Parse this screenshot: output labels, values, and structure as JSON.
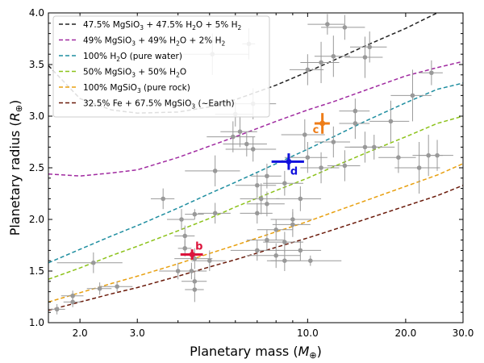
{
  "chart_data": {
    "type": "scatter",
    "title": "",
    "xlabel": "Planetary mass",
    "xlabel_unit": "M",
    "xlabel_unit_sub": "⊕",
    "ylabel": "Planetary radius",
    "ylabel_unit": "R",
    "ylabel_unit_sub": "⊕",
    "xscale": "log",
    "xlim": [
      1.6,
      30.0
    ],
    "ylim": [
      1.0,
      4.0
    ],
    "x_ticks": [
      {
        "v": 2.0,
        "label": "2.0"
      },
      {
        "v": 3.0,
        "label": "3.0"
      },
      {
        "v": 10.0,
        "label": "10.0"
      },
      {
        "v": 20.0,
        "label": "20.0"
      },
      {
        "v": 30.0,
        "label": "30.0"
      }
    ],
    "y_ticks": [
      {
        "v": 1.0,
        "label": "1.0"
      },
      {
        "v": 1.5,
        "label": "1.5"
      },
      {
        "v": 2.0,
        "label": "2.0"
      },
      {
        "v": 2.5,
        "label": "2.5"
      },
      {
        "v": 3.0,
        "label": "3.0"
      },
      {
        "v": 3.5,
        "label": "3.5"
      },
      {
        "v": 4.0,
        "label": "4.0"
      }
    ],
    "legend_position": "top-left",
    "models": [
      {
        "name": "47.5% MgSiO₃ + 47.5% H₂O + 5% H₂",
        "color": "#222222",
        "points": [
          [
            1.6,
            3.49
          ],
          [
            2.0,
            3.17
          ],
          [
            2.5,
            3.06
          ],
          [
            3.0,
            3.03
          ],
          [
            4.0,
            3.04
          ],
          [
            5.0,
            3.09
          ],
          [
            6.0,
            3.16
          ],
          [
            8.0,
            3.3
          ],
          [
            10.0,
            3.43
          ],
          [
            12.0,
            3.54
          ],
          [
            15.0,
            3.68
          ],
          [
            20.0,
            3.85
          ],
          [
            25.0,
            4.0
          ]
        ]
      },
      {
        "name": "49% MgSiO₃ + 49% H₂O + 2% H₂",
        "color": "#a02aa0",
        "points": [
          [
            1.6,
            2.44
          ],
          [
            2.0,
            2.42
          ],
          [
            2.5,
            2.45
          ],
          [
            3.0,
            2.48
          ],
          [
            4.0,
            2.6
          ],
          [
            5.0,
            2.71
          ],
          [
            6.0,
            2.8
          ],
          [
            8.0,
            2.95
          ],
          [
            10.0,
            3.06
          ],
          [
            12.0,
            3.14
          ],
          [
            15.0,
            3.25
          ],
          [
            20.0,
            3.39
          ],
          [
            25.0,
            3.47
          ],
          [
            30.0,
            3.53
          ]
        ]
      },
      {
        "name": "100% H₂O (pure water)",
        "color": "#1f8ea0",
        "points": [
          [
            1.6,
            1.58
          ],
          [
            2.0,
            1.71
          ],
          [
            2.5,
            1.84
          ],
          [
            3.0,
            1.94
          ],
          [
            4.0,
            2.11
          ],
          [
            5.0,
            2.25
          ],
          [
            6.0,
            2.36
          ],
          [
            8.0,
            2.54
          ],
          [
            10.0,
            2.68
          ],
          [
            12.0,
            2.8
          ],
          [
            15.0,
            2.95
          ],
          [
            20.0,
            3.13
          ],
          [
            25.0,
            3.26
          ],
          [
            30.0,
            3.32
          ]
        ]
      },
      {
        "name": "50% MgSiO₃ + 50% H₂O",
        "color": "#8cc21a",
        "points": [
          [
            1.6,
            1.42
          ],
          [
            2.0,
            1.53
          ],
          [
            2.5,
            1.65
          ],
          [
            3.0,
            1.74
          ],
          [
            4.0,
            1.89
          ],
          [
            5.0,
            2.01
          ],
          [
            6.0,
            2.12
          ],
          [
            8.0,
            2.28
          ],
          [
            10.0,
            2.4
          ],
          [
            12.0,
            2.51
          ],
          [
            15.0,
            2.64
          ],
          [
            20.0,
            2.8
          ],
          [
            25.0,
            2.93
          ],
          [
            30.0,
            3.0
          ]
        ]
      },
      {
        "name": "100% MgSiO₃ (pure rock)",
        "color": "#e8a010",
        "points": [
          [
            1.6,
            1.2
          ],
          [
            2.0,
            1.29
          ],
          [
            2.5,
            1.38
          ],
          [
            3.0,
            1.45
          ],
          [
            4.0,
            1.57
          ],
          [
            5.0,
            1.67
          ],
          [
            6.0,
            1.75
          ],
          [
            8.0,
            1.88
          ],
          [
            10.0,
            1.98
          ],
          [
            12.0,
            2.07
          ],
          [
            15.0,
            2.18
          ],
          [
            20.0,
            2.32
          ],
          [
            25.0,
            2.43
          ],
          [
            30.0,
            2.54
          ]
        ]
      },
      {
        "name": "32.5% Fe + 67.5% MgSiO₃ (~Earth)",
        "color": "#6a1a0a",
        "points": [
          [
            1.6,
            1.12
          ],
          [
            2.0,
            1.2
          ],
          [
            2.5,
            1.28
          ],
          [
            3.0,
            1.34
          ],
          [
            4.0,
            1.45
          ],
          [
            5.0,
            1.54
          ],
          [
            6.0,
            1.61
          ],
          [
            8.0,
            1.73
          ],
          [
            10.0,
            1.82
          ],
          [
            12.0,
            1.9
          ],
          [
            15.0,
            2.0
          ],
          [
            20.0,
            2.13
          ],
          [
            25.0,
            2.23
          ],
          [
            30.0,
            2.33
          ]
        ]
      }
    ],
    "background_planets": {
      "color": "#999999",
      "points": [
        [
          1.7,
          1.13,
          0.1,
          0.05
        ],
        [
          1.9,
          1.2,
          0.12,
          0.05
        ],
        [
          1.9,
          1.26,
          0.15,
          0.05
        ],
        [
          2.3,
          1.33,
          0.2,
          0.06
        ],
        [
          2.6,
          1.35,
          0.3,
          0.05
        ],
        [
          2.2,
          1.58,
          0.5,
          0.1
        ],
        [
          3.6,
          2.2,
          0.3,
          0.1
        ],
        [
          4.1,
          2.0,
          0.4,
          0.1
        ],
        [
          4.5,
          2.05,
          0.3,
          0.05
        ],
        [
          4.2,
          1.84,
          0.3,
          0.1
        ],
        [
          4.2,
          1.72,
          0.2,
          0.08
        ],
        [
          4.5,
          1.62,
          0.6,
          0.1
        ],
        [
          4.4,
          1.5,
          0.5,
          0.08
        ],
        [
          4.5,
          1.4,
          0.4,
          0.1
        ],
        [
          4.5,
          1.32,
          0.3,
          0.12
        ],
        [
          4.0,
          1.5,
          0.5,
          0.08
        ],
        [
          5.0,
          1.6,
          0.6,
          0.1
        ],
        [
          5.2,
          2.06,
          0.6,
          0.1
        ],
        [
          5.2,
          2.47,
          1.0,
          0.15
        ],
        [
          5.9,
          2.8,
          1.0,
          0.15
        ],
        [
          6.2,
          2.85,
          0.8,
          0.15
        ],
        [
          6.5,
          2.73,
          1.0,
          0.12
        ],
        [
          6.8,
          2.68,
          1.2,
          0.12
        ],
        [
          6.0,
          3.02,
          0.8,
          0.12
        ],
        [
          6.8,
          3.12,
          1.2,
          0.15
        ],
        [
          5.1,
          3.6,
          1.5,
          0.2
        ],
        [
          6.6,
          3.7,
          0.3,
          0.15
        ],
        [
          7.5,
          2.42,
          0.8,
          0.12
        ],
        [
          7.0,
          2.33,
          1.0,
          0.12
        ],
        [
          7.2,
          2.2,
          1.0,
          0.15
        ],
        [
          7.5,
          2.15,
          1.0,
          0.12
        ],
        [
          7.0,
          2.06,
          0.8,
          0.1
        ],
        [
          8.0,
          1.9,
          1.0,
          0.1
        ],
        [
          7.5,
          1.8,
          1.0,
          0.1
        ],
        [
          8.5,
          1.78,
          1.2,
          0.1
        ],
        [
          9.0,
          1.95,
          1.2,
          0.12
        ],
        [
          7.0,
          1.7,
          1.2,
          0.1
        ],
        [
          8.0,
          1.65,
          1.5,
          0.12
        ],
        [
          9.5,
          1.7,
          1.5,
          0.1
        ],
        [
          8.5,
          1.6,
          1.0,
          0.1
        ],
        [
          10.2,
          1.6,
          2.5,
          0.05
        ],
        [
          9.0,
          2.0,
          1.3,
          0.1
        ],
        [
          8.5,
          2.35,
          1.2,
          0.12
        ],
        [
          9.5,
          2.2,
          1.5,
          0.12
        ],
        [
          9.8,
          2.82,
          1.5,
          0.15
        ],
        [
          10.0,
          2.6,
          1.5,
          0.15
        ],
        [
          10.0,
          3.45,
          1.2,
          0.15
        ],
        [
          12.0,
          2.75,
          1.5,
          0.15
        ],
        [
          11.0,
          3.52,
          1.5,
          0.2
        ],
        [
          12.0,
          3.58,
          1.5,
          0.2
        ],
        [
          11.5,
          3.89,
          1.5,
          0.1
        ],
        [
          13.0,
          3.86,
          2.0,
          0.12
        ],
        [
          15.0,
          3.57,
          2.0,
          0.2
        ],
        [
          15.5,
          3.67,
          2.0,
          0.15
        ],
        [
          14.0,
          3.05,
          1.5,
          0.12
        ],
        [
          14.0,
          2.93,
          1.5,
          0.15
        ],
        [
          13.0,
          2.52,
          1.5,
          0.15
        ],
        [
          15.0,
          2.7,
          2.0,
          0.15
        ],
        [
          16.0,
          2.7,
          2.5,
          0.12
        ],
        [
          18.0,
          2.95,
          2.5,
          0.2
        ],
        [
          19.0,
          2.6,
          2.5,
          0.15
        ],
        [
          21.0,
          3.2,
          3.0,
          0.25
        ],
        [
          22.0,
          2.5,
          3.5,
          0.25
        ],
        [
          23.5,
          2.62,
          2.5,
          0.2
        ],
        [
          25.0,
          2.62,
          3.0,
          0.15
        ],
        [
          24.0,
          3.42,
          2.0,
          0.12
        ],
        [
          11.0,
          2.5,
          1.5,
          0.15
        ]
      ]
    },
    "highlighted_planets": [
      {
        "label": "b",
        "x": 4.42,
        "y": 1.66,
        "xerr": 0.35,
        "yerr": 0.05,
        "color": "#dc143c",
        "label_dx": 4,
        "label_dy": -6
      },
      {
        "label": "c",
        "x": 11.1,
        "y": 2.93,
        "xerr": 0.6,
        "yerr": 0.1,
        "color": "#ee7d18",
        "label_dx": -12,
        "label_dy": 12
      },
      {
        "label": "d",
        "x": 8.75,
        "y": 2.56,
        "xerr": 1.0,
        "yerr": 0.08,
        "color": "#1111dd",
        "label_dx": 2,
        "label_dy": 16
      }
    ]
  }
}
